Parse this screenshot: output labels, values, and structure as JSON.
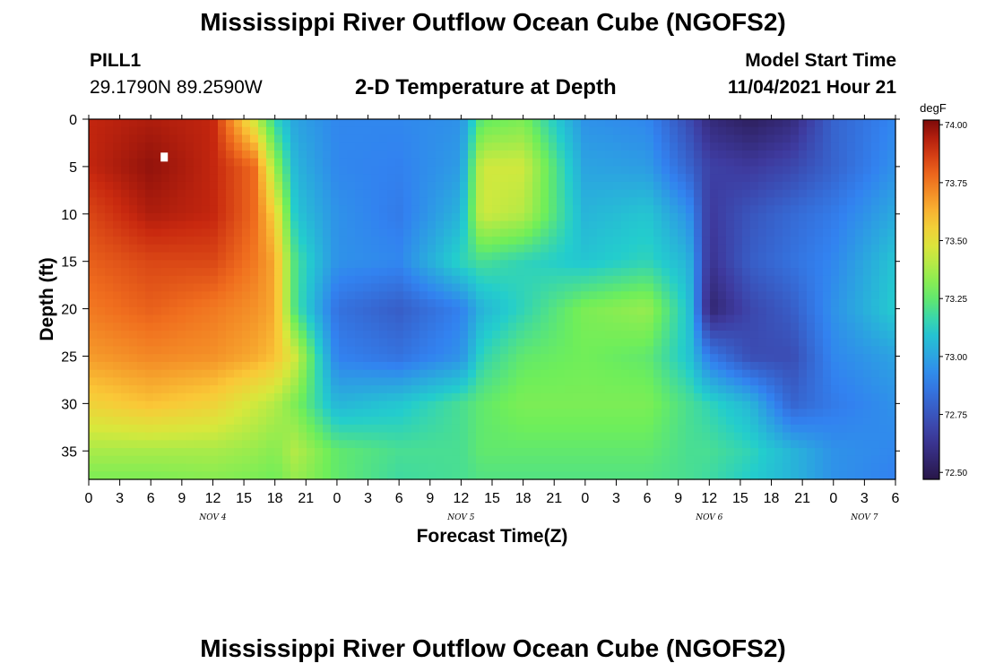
{
  "header": {
    "title": "Mississippi River Outflow Ocean Cube (NGOFS2)",
    "station_name": "PILL1",
    "station_coords": "29.1790N  89.2590W",
    "model_start_label": "Model Start Time",
    "model_start_value": "11/04/2021 Hour 21"
  },
  "footer": {
    "title": "Mississippi River Outflow Ocean Cube (NGOFS2)"
  },
  "chart_data": {
    "type": "heatmap",
    "title": "2-D Temperature at Depth",
    "xlabel": "Forecast Time(Z)",
    "ylabel": "Depth (ft)",
    "x_tick_labels": [
      "0",
      "3",
      "6",
      "9",
      "12",
      "15",
      "18",
      "21",
      "0",
      "3",
      "6",
      "9",
      "12",
      "15",
      "18",
      "21",
      "0",
      "3",
      "6",
      "9",
      "12",
      "15",
      "18",
      "21",
      "0",
      "3",
      "6"
    ],
    "date_labels": [
      {
        "label": "NOV 4",
        "hour": 12
      },
      {
        "label": "NOV 5",
        "hour": 36
      },
      {
        "label": "NOV 6",
        "hour": 60
      },
      {
        "label": "NOV 7",
        "hour": 75
      }
    ],
    "xlim": [
      0,
      78
    ],
    "y_ticks": [
      0,
      5,
      10,
      15,
      20,
      25,
      30,
      35
    ],
    "ylim": [
      0,
      38
    ],
    "y_inverted": true,
    "colorbar": {
      "units": "degF",
      "ticks": [
        "74.00",
        "73.75",
        "73.50",
        "73.25",
        "73.00",
        "72.75",
        "72.50"
      ],
      "range": [
        72.47,
        74.02
      ]
    },
    "marker": {
      "hour": 7.3,
      "depth": 4.0,
      "color": "#ffffff"
    },
    "field_grid": {
      "hours": [
        0,
        6,
        12,
        16,
        18,
        20,
        24,
        30,
        36,
        38,
        42,
        48,
        54,
        58,
        60,
        64,
        68,
        72,
        78
      ],
      "depths": [
        0,
        5,
        10,
        15,
        20,
        25,
        30,
        35,
        38
      ],
      "values": [
        [
          73.92,
          73.95,
          73.92,
          73.45,
          73.15,
          73.0,
          72.92,
          72.92,
          72.95,
          73.25,
          73.3,
          72.95,
          72.92,
          72.72,
          72.58,
          72.52,
          72.58,
          72.8,
          72.92
        ],
        [
          73.92,
          73.99,
          73.92,
          73.78,
          73.35,
          73.05,
          72.92,
          72.9,
          72.98,
          73.45,
          73.45,
          73.0,
          72.98,
          72.8,
          72.68,
          72.65,
          72.7,
          72.8,
          72.95
        ],
        [
          73.85,
          73.95,
          73.92,
          73.78,
          73.55,
          73.1,
          72.95,
          72.88,
          73.05,
          73.45,
          73.4,
          73.05,
          73.1,
          72.95,
          72.65,
          72.75,
          72.82,
          72.88,
          73.02
        ],
        [
          73.8,
          73.85,
          73.85,
          73.75,
          73.65,
          73.2,
          72.95,
          72.92,
          73.15,
          73.2,
          73.15,
          73.1,
          73.15,
          73.05,
          72.62,
          72.78,
          72.85,
          72.92,
          73.1
        ],
        [
          73.75,
          73.8,
          73.75,
          73.7,
          73.65,
          73.2,
          72.85,
          72.78,
          72.9,
          73.05,
          73.15,
          73.3,
          73.35,
          73.1,
          72.55,
          72.7,
          72.78,
          72.95,
          73.12
        ],
        [
          73.68,
          73.72,
          73.7,
          73.65,
          73.6,
          73.45,
          72.9,
          72.85,
          72.95,
          73.15,
          73.25,
          73.28,
          73.25,
          73.1,
          72.88,
          72.72,
          72.72,
          72.92,
          73.0
        ],
        [
          73.55,
          73.6,
          73.55,
          73.45,
          73.4,
          73.3,
          73.05,
          73.1,
          73.2,
          73.25,
          73.3,
          73.3,
          73.3,
          73.2,
          73.15,
          73.05,
          72.8,
          72.88,
          72.95
        ],
        [
          73.38,
          73.38,
          73.38,
          73.35,
          73.32,
          73.4,
          73.25,
          73.2,
          73.2,
          73.25,
          73.25,
          73.25,
          73.25,
          73.2,
          73.2,
          73.15,
          73.05,
          72.95,
          72.92
        ],
        [
          73.3,
          73.3,
          73.32,
          73.3,
          73.28,
          73.35,
          73.25,
          73.18,
          73.2,
          73.22,
          73.22,
          73.22,
          73.22,
          73.2,
          73.18,
          73.12,
          73.05,
          72.95,
          72.9
        ]
      ]
    }
  }
}
